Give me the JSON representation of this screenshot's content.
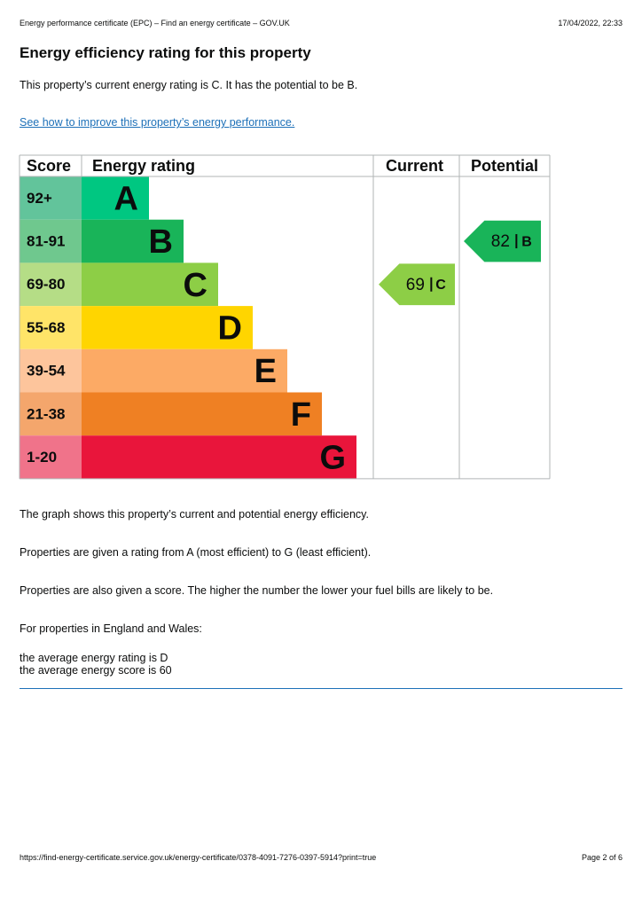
{
  "header": {
    "page_title": "Energy performance certificate (EPC) – Find an energy certificate – GOV.UK",
    "timestamp": "17/04/2022, 22:33"
  },
  "title": "Energy efficiency rating for this property",
  "summary": "This property’s current energy rating is C. It has the potential to be B.",
  "link": "See how to improve this property’s energy performance.",
  "epc": {
    "headers": [
      "Score",
      "Energy rating",
      "Current",
      "Potential"
    ],
    "bands": [
      {
        "score": "92+",
        "letter": "A",
        "color": "#00c781",
        "score_color": "#62c49b"
      },
      {
        "score": "81-91",
        "letter": "B",
        "color": "#19b459",
        "score_color": "#6fc88e"
      },
      {
        "score": "69-80",
        "letter": "C",
        "color": "#8dce46",
        "score_color": "#b5dd86"
      },
      {
        "score": "55-68",
        "letter": "D",
        "color": "#ffd500",
        "score_color": "#ffe468"
      },
      {
        "score": "39-54",
        "letter": "E",
        "color": "#fcaa65",
        "score_color": "#fdc59c"
      },
      {
        "score": "21-38",
        "letter": "F",
        "color": "#ef8023",
        "score_color": "#f4a66c"
      },
      {
        "score": "1-20",
        "letter": "G",
        "color": "#e9153b",
        "score_color": "#f0738a"
      }
    ],
    "current": {
      "value": 69,
      "letter": "C"
    },
    "potential": {
      "value": 82,
      "letter": "B"
    }
  },
  "paragraphs": [
    "The graph shows this property’s current and potential energy efficiency.",
    "Properties are given a rating from A (most efficient) to G (least efficient).",
    "Properties are also given a score. The higher the number the lower your fuel bills are likely to be.",
    "For properties in England and Wales:"
  ],
  "averages": [
    "the average energy rating is D",
    "the average energy score is 60"
  ],
  "footer": {
    "url": "https://find-energy-certificate.service.gov.uk/energy-certificate/0378-4091-7276-0397-5914?print=true",
    "page": "Page 2 of 6"
  }
}
